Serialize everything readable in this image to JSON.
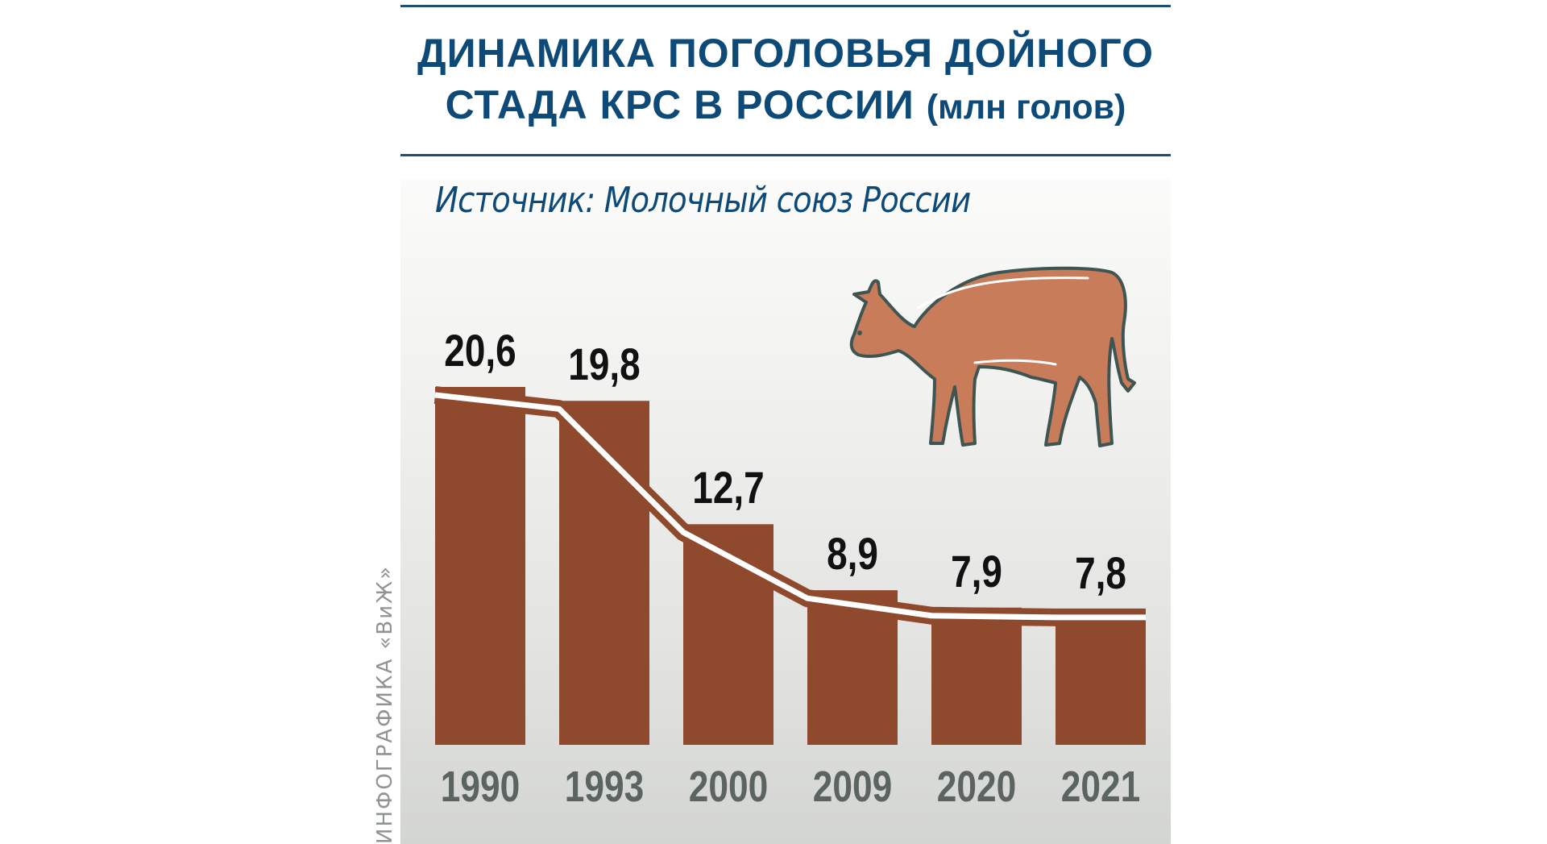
{
  "header": {
    "title_line1": "ДИНАМИКА ПОГОЛОВЬЯ ДОЙНОГО",
    "title_line2": "СТАДА КРС В РОССИИ",
    "title_unit": "(млн голов)",
    "source": "Источник: Молочный союз России",
    "credit": "ИНФОГРАФИКА «ВиЖ»"
  },
  "colors": {
    "title": "#0d4a78",
    "bar": "#8f4a2e",
    "cow_fill": "#c97c5a",
    "cow_outline": "#3f5551",
    "year_label": "#5b6460"
  },
  "icons": {
    "illustration": "cow-icon"
  },
  "chart_data": {
    "type": "bar",
    "title": "Динамика поголовья дойного стада КРС в России (млн голов)",
    "subtitle": "Источник: Молочный союз России",
    "categories": [
      "1990",
      "1993",
      "2000",
      "2009",
      "2020",
      "2021"
    ],
    "values": [
      20.6,
      19.8,
      12.7,
      8.9,
      7.9,
      7.8
    ],
    "value_labels": [
      "20,6",
      "19,8",
      "12,7",
      "8,9",
      "7,9",
      "7,8"
    ],
    "xlabel": "",
    "ylabel": "млн голов",
    "ylim": [
      0,
      22
    ],
    "grid": false,
    "legend": null,
    "overlay": "trend line (white stroke on brown ribbon) connecting bar tops"
  }
}
